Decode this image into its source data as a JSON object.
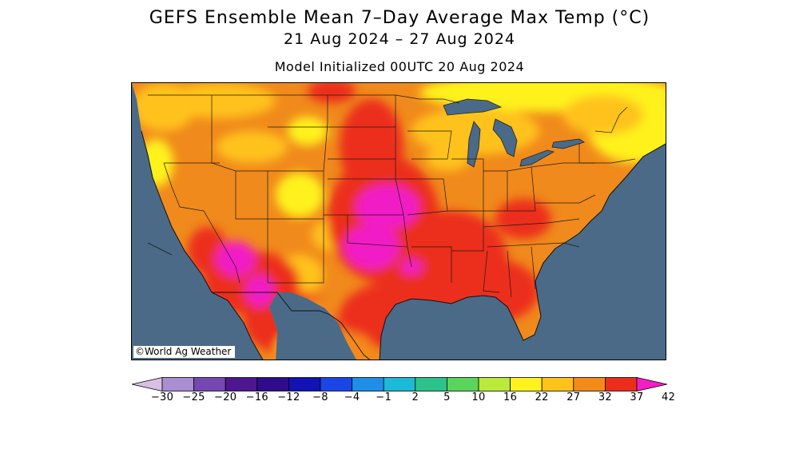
{
  "title": {
    "line1": "GEFS Ensemble Mean 7–Day Average Max Temp (°C)",
    "line2": "21 Aug 2024 – 27 Aug 2024",
    "line3": "Model Initialized 00UTC 20 Aug 2024"
  },
  "map": {
    "region": "Contiguous United States",
    "copyright": "©World Ag Weather",
    "ocean_color": "#4a6a88",
    "land_color_dominant": "#f08a1c"
  },
  "legend": {
    "units": "°C",
    "tick_labels": [
      "-30",
      "-25",
      "-20",
      "-16",
      "-12",
      "-8",
      "-4",
      "-1",
      "2",
      "5",
      "10",
      "16",
      "22",
      "27",
      "32",
      "37",
      "42"
    ],
    "colors": [
      "#d9bfe6",
      "#a98ed2",
      "#7447b3",
      "#4e168f",
      "#2f0c8c",
      "#1212b5",
      "#1a46e6",
      "#1d8fe8",
      "#1bbad8",
      "#2bc38b",
      "#5ad45a",
      "#b9ea3c",
      "#fff21f",
      "#ffc21a",
      "#f48a1a",
      "#ec2d1c",
      "#f21ec6"
    ]
  }
}
